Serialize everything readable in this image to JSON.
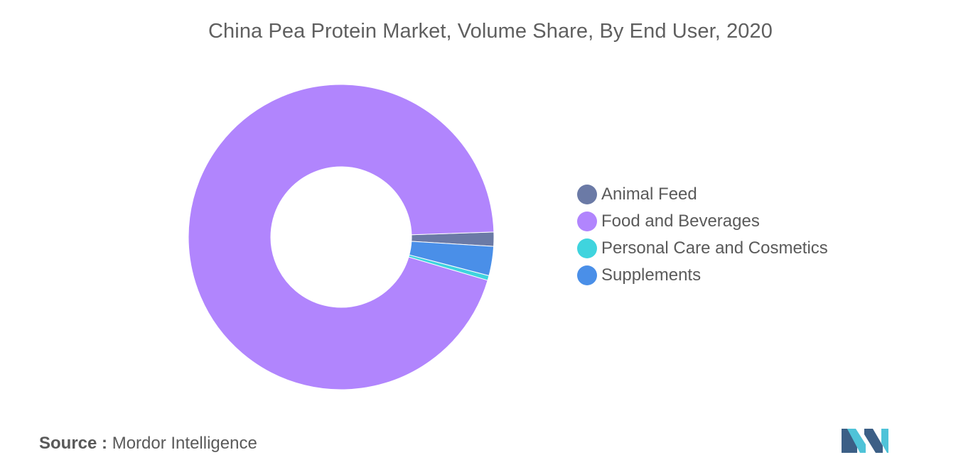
{
  "chart_data": {
    "type": "pie",
    "title": "China Pea Protein Market, Volume Share, By End User, 2020",
    "donut": true,
    "start_direction": "clockwise-from-3-oclock",
    "series": [
      {
        "name": "Animal Feed",
        "value": 1.5,
        "color": "#6b7aa6"
      },
      {
        "name": "Food and Beverages",
        "value": 94.9,
        "color": "#b185fd"
      },
      {
        "name": "Personal Care and Cosmetics",
        "value": 0.5,
        "color": "#3fd4de"
      },
      {
        "name": "Supplements",
        "value": 3.1,
        "color": "#4a8fe8"
      }
    ],
    "legend_position": "right"
  },
  "source": {
    "label": "Source :",
    "text": "Mordor Intelligence"
  },
  "logo": {
    "icon": "mordor-intelligence-logo",
    "colors": [
      "#3c5f86",
      "#4fc3d8"
    ]
  }
}
